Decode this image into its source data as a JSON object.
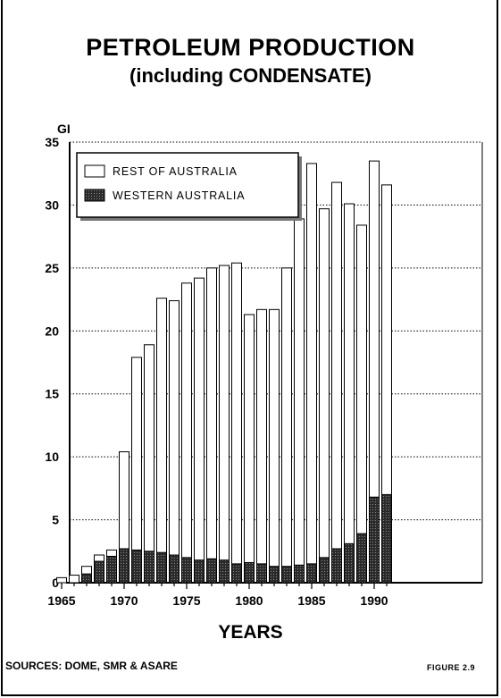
{
  "chart_data": {
    "type": "bar",
    "stacked": true,
    "title": "PETROLEUM PRODUCTION",
    "subtitle": "(including CONDENSATE)",
    "ylabel": "GI",
    "xlabel": "YEARS",
    "ylim": [
      0,
      35
    ],
    "yticks": [
      0,
      5,
      10,
      15,
      20,
      25,
      30,
      35
    ],
    "xticks": [
      1965,
      1970,
      1975,
      1980,
      1985,
      1990
    ],
    "grid": "horizontal-dotted",
    "legend_position": "top-left",
    "x": [
      1965,
      1966,
      1967,
      1968,
      1969,
      1970,
      1971,
      1972,
      1973,
      1974,
      1975,
      1976,
      1977,
      1978,
      1979,
      1980,
      1981,
      1982,
      1983,
      1984,
      1985,
      1986,
      1987,
      1988,
      1989,
      1990,
      1991
    ],
    "series": [
      {
        "name": "WESTERN AUSTRALIA",
        "fill": "#3a3a3a",
        "values": [
          0,
          0,
          0.7,
          1.7,
          2.1,
          2.7,
          2.6,
          2.5,
          2.4,
          2.2,
          2.0,
          1.8,
          1.9,
          1.8,
          1.5,
          1.6,
          1.5,
          1.3,
          1.3,
          1.4,
          1.5,
          2.0,
          2.7,
          3.1,
          3.9,
          6.8,
          7.0
        ]
      },
      {
        "name": "REST OF AUSTRALIA",
        "fill": "#ffffff",
        "values": [
          0.4,
          0.6,
          0.6,
          0.5,
          0.5,
          7.7,
          15.3,
          16.4,
          20.2,
          20.2,
          21.8,
          22.4,
          23.1,
          23.4,
          23.9,
          19.7,
          20.2,
          20.4,
          23.7,
          27.5,
          31.8,
          27.7,
          29.1,
          27.0,
          24.5,
          26.7,
          24.6
        ]
      }
    ]
  },
  "footer": {
    "sources": "SOURCES: DOME, SMR & ASARE",
    "figure": "FIGURE 2.9"
  }
}
